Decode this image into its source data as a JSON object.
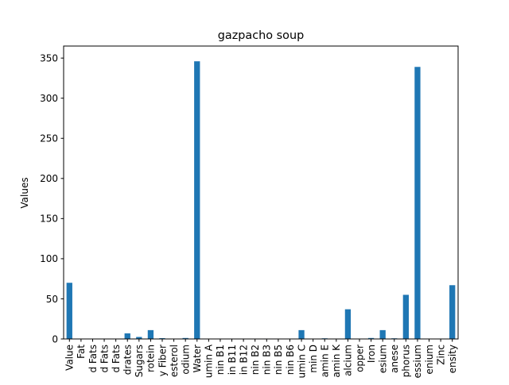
{
  "chart_data": {
    "type": "bar",
    "title": "gazpacho soup",
    "xlabel": "",
    "ylabel": "Values",
    "ylim": [
      0,
      365
    ],
    "yticks": [
      0,
      50,
      100,
      150,
      200,
      250,
      300,
      350
    ],
    "grid": false,
    "legend": "none",
    "bar_color": "#1f77b4",
    "categories": [
      "Value",
      "Fat",
      "d Fats",
      "d Fats",
      "d Fats",
      "drates",
      "Sugars",
      "rotein",
      "y Fiber",
      "esterol",
      "odium",
      "Water",
      "umin A",
      "nin B1",
      "in B11",
      "in B12",
      "nin B2",
      "nin B3",
      "nin B5",
      "nin B6",
      "umin C",
      "min D",
      "amin E",
      "amin K",
      "alcium",
      "opper",
      "Iron",
      "esium",
      "anese",
      "phorus",
      "essium",
      "enium",
      "Zinc",
      "ensity"
    ],
    "values": [
      70,
      0.2,
      0.1,
      0.1,
      0.1,
      7,
      2.5,
      11,
      1,
      0,
      1.2,
      346,
      0,
      0,
      0,
      0,
      0,
      0.5,
      0.3,
      0.2,
      11,
      0,
      0.8,
      0,
      37,
      0.2,
      1.2,
      11,
      0.8,
      55,
      339,
      0,
      0.3,
      67
    ]
  }
}
